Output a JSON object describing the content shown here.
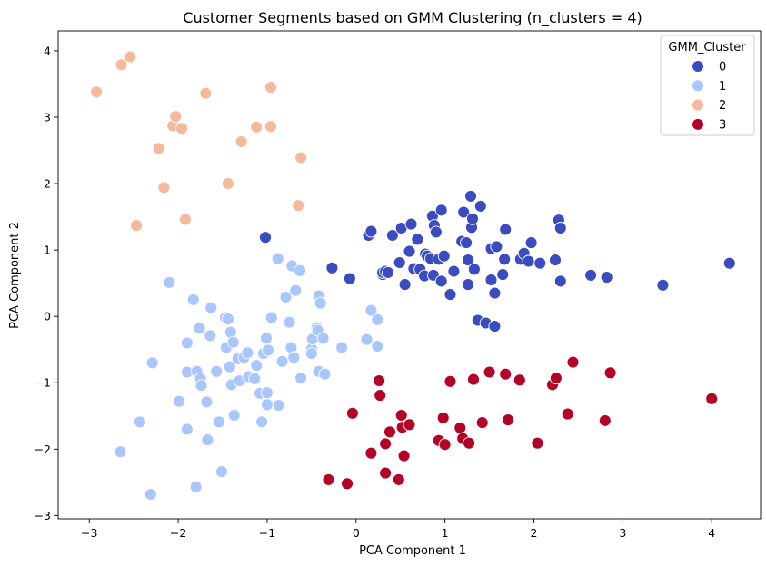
{
  "chart_data": {
    "type": "scatter",
    "title": "Customer Segments based on GMM Clustering (n_clusters = 4)",
    "xlabel": "PCA Component 1",
    "ylabel": "PCA Component 2",
    "xlim": [
      -3.35,
      4.55
    ],
    "ylim": [
      -3.05,
      4.3
    ],
    "xticks": [
      -3,
      -2,
      -1,
      0,
      1,
      2,
      3,
      4
    ],
    "yticks": [
      -3,
      -2,
      -1,
      0,
      1,
      2,
      3,
      4
    ],
    "xtick_labels": [
      "−3",
      "−2",
      "−1",
      "0",
      "1",
      "2",
      "3",
      "4"
    ],
    "ytick_labels": [
      "−3",
      "−2",
      "−1",
      "0",
      "1",
      "2",
      "3",
      "4"
    ],
    "grid": false,
    "legend": {
      "title": "GMM_Cluster",
      "position": "top-right",
      "entries": [
        "0",
        "1",
        "2",
        "3"
      ]
    },
    "colors": [
      "#3b4cc0",
      "#aac7fd",
      "#f7b89c",
      "#b40426"
    ],
    "series": [
      {
        "name": "0",
        "points": [
          [
            -1.02,
            1.19
          ],
          [
            -0.27,
            0.73
          ],
          [
            -0.07,
            0.57
          ],
          [
            0.14,
            1.22
          ],
          [
            0.17,
            1.28
          ],
          [
            0.3,
            0.63
          ],
          [
            0.3,
            0.66
          ],
          [
            0.33,
            0.68
          ],
          [
            0.36,
            0.66
          ],
          [
            0.41,
            1.22
          ],
          [
            0.49,
            0.81
          ],
          [
            0.51,
            1.33
          ],
          [
            0.55,
            0.48
          ],
          [
            0.6,
            0.98
          ],
          [
            0.62,
            1.39
          ],
          [
            0.65,
            0.72
          ],
          [
            0.69,
            1.16
          ],
          [
            0.72,
            0.71
          ],
          [
            0.77,
            0.61
          ],
          [
            0.78,
            0.94
          ],
          [
            0.8,
            0.91
          ],
          [
            0.84,
            0.87
          ],
          [
            0.86,
            1.51
          ],
          [
            0.87,
            0.62
          ],
          [
            0.88,
            1.37
          ],
          [
            0.9,
            1.27
          ],
          [
            0.93,
            0.86
          ],
          [
            0.96,
            1.6
          ],
          [
            0.96,
            0.53
          ],
          [
            0.99,
            0.91
          ],
          [
            1.06,
            0.33
          ],
          [
            1.1,
            0.68
          ],
          [
            1.19,
            1.13
          ],
          [
            1.21,
            1.57
          ],
          [
            1.24,
            1.11
          ],
          [
            1.26,
            0.85
          ],
          [
            1.26,
            0.48
          ],
          [
            1.29,
            1.81
          ],
          [
            1.3,
            1.34
          ],
          [
            1.31,
            1.47
          ],
          [
            1.33,
            0.71
          ],
          [
            1.37,
            -0.06
          ],
          [
            1.4,
            1.66
          ],
          [
            1.46,
            -0.1
          ],
          [
            1.52,
            0.55
          ],
          [
            1.52,
            1.02
          ],
          [
            1.56,
            0.35
          ],
          [
            1.56,
            -0.15
          ],
          [
            1.58,
            1.05
          ],
          [
            1.65,
            0.63
          ],
          [
            1.67,
            0.86
          ],
          [
            1.68,
            1.31
          ],
          [
            1.85,
            0.86
          ],
          [
            1.89,
            0.95
          ],
          [
            1.94,
            0.83
          ],
          [
            1.97,
            1.11
          ],
          [
            2.07,
            0.8
          ],
          [
            2.24,
            0.85
          ],
          [
            2.28,
            1.45
          ],
          [
            2.3,
            1.33
          ],
          [
            2.3,
            0.53
          ],
          [
            2.64,
            0.62
          ],
          [
            2.82,
            0.59
          ],
          [
            3.45,
            0.47
          ],
          [
            4.2,
            0.8
          ]
        ]
      },
      {
        "name": "1",
        "points": [
          [
            -2.65,
            -2.04
          ],
          [
            -2.43,
            -1.59
          ],
          [
            -2.29,
            -0.7
          ],
          [
            -2.31,
            -2.68
          ],
          [
            -2.1,
            0.51
          ],
          [
            -1.99,
            -1.28
          ],
          [
            -1.9,
            -0.84
          ],
          [
            -1.9,
            -0.4
          ],
          [
            -1.9,
            -1.7
          ],
          [
            -1.83,
            0.25
          ],
          [
            -1.8,
            -2.57
          ],
          [
            -1.79,
            -0.83
          ],
          [
            -1.76,
            -0.18
          ],
          [
            -1.75,
            -0.94
          ],
          [
            -1.74,
            -1.04
          ],
          [
            -1.68,
            -1.29
          ],
          [
            -1.67,
            -1.86
          ],
          [
            -1.64,
            -0.29
          ],
          [
            -1.63,
            0.13
          ],
          [
            -1.57,
            -0.83
          ],
          [
            -1.54,
            -1.59
          ],
          [
            -1.51,
            -2.34
          ],
          [
            -1.47,
            -0.02
          ],
          [
            -1.46,
            -0.47
          ],
          [
            -1.44,
            -0.04
          ],
          [
            -1.42,
            -0.76
          ],
          [
            -1.41,
            -0.24
          ],
          [
            -1.4,
            -1.03
          ],
          [
            -1.38,
            -0.39
          ],
          [
            -1.37,
            -1.49
          ],
          [
            -1.33,
            -0.64
          ],
          [
            -1.31,
            -0.97
          ],
          [
            -1.26,
            -0.62
          ],
          [
            -1.22,
            -0.55
          ],
          [
            -1.21,
            -0.91
          ],
          [
            -1.14,
            -0.94
          ],
          [
            -1.12,
            -0.74
          ],
          [
            -1.08,
            -1.16
          ],
          [
            -1.06,
            -1.59
          ],
          [
            -1.04,
            -0.56
          ],
          [
            -1.01,
            -0.33
          ],
          [
            -1.0,
            -1.15
          ],
          [
            -1.0,
            -1.33
          ],
          [
            -0.99,
            -0.51
          ],
          [
            -0.95,
            -0.02
          ],
          [
            -0.88,
            0.87
          ],
          [
            -0.87,
            -1.34
          ],
          [
            -0.83,
            -0.68
          ],
          [
            -0.79,
            0.29
          ],
          [
            -0.75,
            -0.09
          ],
          [
            -0.73,
            -0.47
          ],
          [
            -0.72,
            0.76
          ],
          [
            -0.7,
            -0.62
          ],
          [
            -0.68,
            0.39
          ],
          [
            -0.63,
            0.69
          ],
          [
            -0.62,
            -0.93
          ],
          [
            -0.5,
            -0.49
          ],
          [
            -0.5,
            -0.56
          ],
          [
            -0.49,
            -0.34
          ],
          [
            -0.44,
            -0.17
          ],
          [
            -0.43,
            -0.21
          ],
          [
            -0.42,
            -0.83
          ],
          [
            -0.42,
            0.31
          ],
          [
            -0.4,
            0.2
          ],
          [
            -0.37,
            -0.33
          ],
          [
            -0.35,
            -0.87
          ],
          [
            -0.16,
            -0.47
          ],
          [
            0.12,
            -0.35
          ],
          [
            0.17,
            0.09
          ],
          [
            0.24,
            -0.05
          ],
          [
            0.24,
            -0.45
          ]
        ]
      },
      {
        "name": "2",
        "points": [
          [
            -2.92,
            3.38
          ],
          [
            -2.64,
            3.79
          ],
          [
            -2.54,
            3.91
          ],
          [
            -2.47,
            1.37
          ],
          [
            -2.22,
            2.53
          ],
          [
            -2.16,
            1.94
          ],
          [
            -2.06,
            2.87
          ],
          [
            -2.03,
            3.01
          ],
          [
            -1.96,
            2.83
          ],
          [
            -1.92,
            1.46
          ],
          [
            -1.69,
            3.36
          ],
          [
            -1.44,
            2.0
          ],
          [
            -1.29,
            2.63
          ],
          [
            -1.12,
            2.85
          ],
          [
            -0.96,
            2.86
          ],
          [
            -0.96,
            3.45
          ],
          [
            -0.65,
            1.67
          ],
          [
            -0.62,
            2.39
          ]
        ]
      },
      {
        "name": "3",
        "points": [
          [
            -0.31,
            -2.46
          ],
          [
            -0.1,
            -2.52
          ],
          [
            -0.04,
            -1.46
          ],
          [
            0.17,
            -2.06
          ],
          [
            0.26,
            -0.97
          ],
          [
            0.27,
            -1.19
          ],
          [
            0.33,
            -1.92
          ],
          [
            0.33,
            -2.36
          ],
          [
            0.38,
            -1.74
          ],
          [
            0.48,
            -2.46
          ],
          [
            0.51,
            -1.49
          ],
          [
            0.52,
            -1.67
          ],
          [
            0.54,
            -2.1
          ],
          [
            0.6,
            -1.63
          ],
          [
            0.93,
            -1.87
          ],
          [
            0.98,
            -1.53
          ],
          [
            1.0,
            -1.93
          ],
          [
            1.06,
            -0.98
          ],
          [
            1.17,
            -1.68
          ],
          [
            1.2,
            -1.84
          ],
          [
            1.27,
            -1.91
          ],
          [
            1.32,
            -0.95
          ],
          [
            1.42,
            -1.6
          ],
          [
            1.5,
            -0.84
          ],
          [
            1.68,
            -0.87
          ],
          [
            1.71,
            -1.56
          ],
          [
            1.84,
            -0.96
          ],
          [
            2.04,
            -1.91
          ],
          [
            2.21,
            -1.03
          ],
          [
            2.25,
            -0.93
          ],
          [
            2.38,
            -1.47
          ],
          [
            2.44,
            -0.69
          ],
          [
            2.8,
            -1.57
          ],
          [
            2.86,
            -0.85
          ],
          [
            4.0,
            -1.24
          ]
        ]
      }
    ]
  }
}
